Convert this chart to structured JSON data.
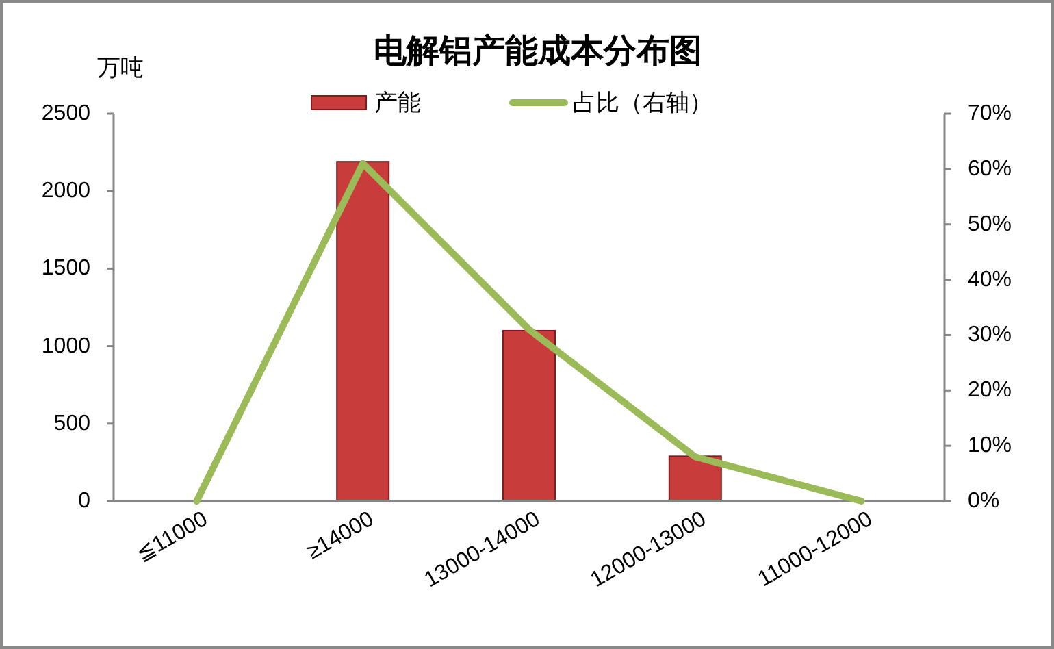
{
  "chart_data": {
    "type": "bar",
    "title": "电解铝产能成本分布图",
    "ylabel": "万吨",
    "categories": [
      "≦11000",
      "≥14000",
      "13000-14000",
      "12000-13000",
      "11000-12000"
    ],
    "series": [
      {
        "name": "产能",
        "color": "#c83c3c",
        "values": [
          0,
          2190,
          1100,
          290,
          0
        ]
      },
      {
        "name": "占比（右轴）",
        "type": "line",
        "axis": "y2",
        "color": "#9bbb59",
        "values": [
          0,
          61,
          31,
          8,
          0
        ]
      }
    ],
    "ylim": [
      0,
      2500
    ],
    "yticks": [
      0,
      500,
      1000,
      1500,
      2000,
      2500
    ],
    "y2lim": [
      0,
      70
    ],
    "y2ticks": [
      {
        "value": 0,
        "label": "0%"
      },
      {
        "value": 10,
        "label": "10%"
      },
      {
        "value": 20,
        "label": "20%"
      },
      {
        "value": 30,
        "label": "30%"
      },
      {
        "value": 40,
        "label": "40%"
      },
      {
        "value": 50,
        "label": "50%"
      },
      {
        "value": 60,
        "label": "60%"
      },
      {
        "value": 70,
        "label": "70%"
      }
    ],
    "legend": "top"
  }
}
